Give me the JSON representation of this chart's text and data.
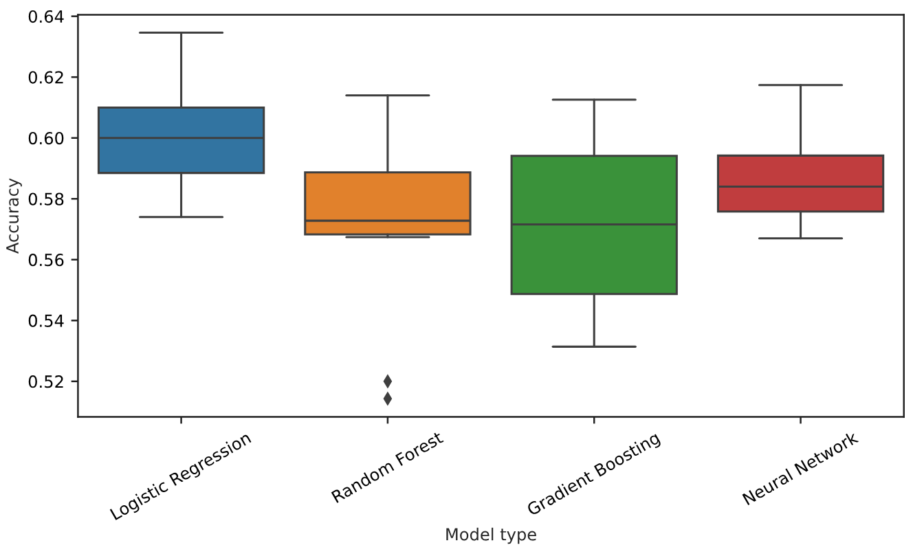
{
  "chart_data": {
    "type": "box",
    "xlabel": "Model type",
    "ylabel": "Accuracy",
    "categories": [
      "Logistic Regression",
      "Random Forest",
      "Gradient Boosting",
      "Neural Network"
    ],
    "boxes": [
      {
        "low": 0.574,
        "q1": 0.5885,
        "median": 0.6,
        "q3": 0.61,
        "high": 0.6346
      },
      {
        "low": 0.5674,
        "q1": 0.5683,
        "median": 0.5728,
        "q3": 0.5887,
        "high": 0.614,
        "outliers": [
          0.52,
          0.5143
        ]
      },
      {
        "low": 0.5314,
        "q1": 0.5487,
        "median": 0.5716,
        "q3": 0.5941,
        "high": 0.6126
      },
      {
        "low": 0.567,
        "q1": 0.5758,
        "median": 0.584,
        "q3": 0.5942,
        "high": 0.6174
      }
    ],
    "colors": [
      "#3274a1",
      "#e1812c",
      "#3a923a",
      "#c03d3e"
    ],
    "ylim": [
      0.5083,
      0.6405
    ],
    "yticks": [
      0.52,
      0.54,
      0.56,
      0.58,
      {
        "value": 0.6,
        "label": "0.60"
      },
      0.62,
      0.64
    ],
    "marker": "diamond",
    "grid": false
  }
}
